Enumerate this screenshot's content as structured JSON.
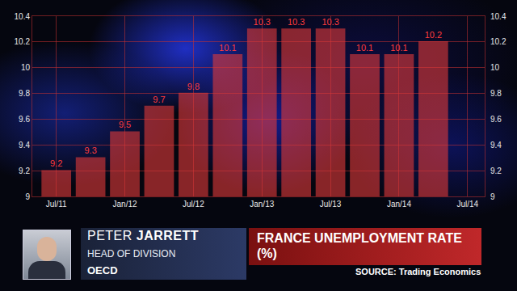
{
  "chart_data": {
    "type": "bar",
    "title": "FRANCE UNEMPLOYMENT RATE (%)",
    "source": "SOURCE: Trading Economics",
    "categories": [
      "Jul/11",
      null,
      "Jan/12",
      null,
      "Jul/12",
      null,
      "Jan/13",
      null,
      "Jul/13",
      null,
      "Jan/14",
      null,
      "Jul/14"
    ],
    "values": [
      9.2,
      9.3,
      9.5,
      9.7,
      9.8,
      10.1,
      10.3,
      10.3,
      10.3,
      10.1,
      10.1,
      10.2,
      null
    ],
    "color": "#e03a3a",
    "ylim": [
      9,
      10.4
    ],
    "yticks": [
      9,
      9.2,
      9.4,
      9.6,
      9.8,
      10,
      10.2,
      10.4
    ],
    "grid": true,
    "data_labels": true
  },
  "caption": {
    "name": "PETER JARRETT",
    "role": "HEAD OF DIVISION",
    "organization": "OECD"
  }
}
